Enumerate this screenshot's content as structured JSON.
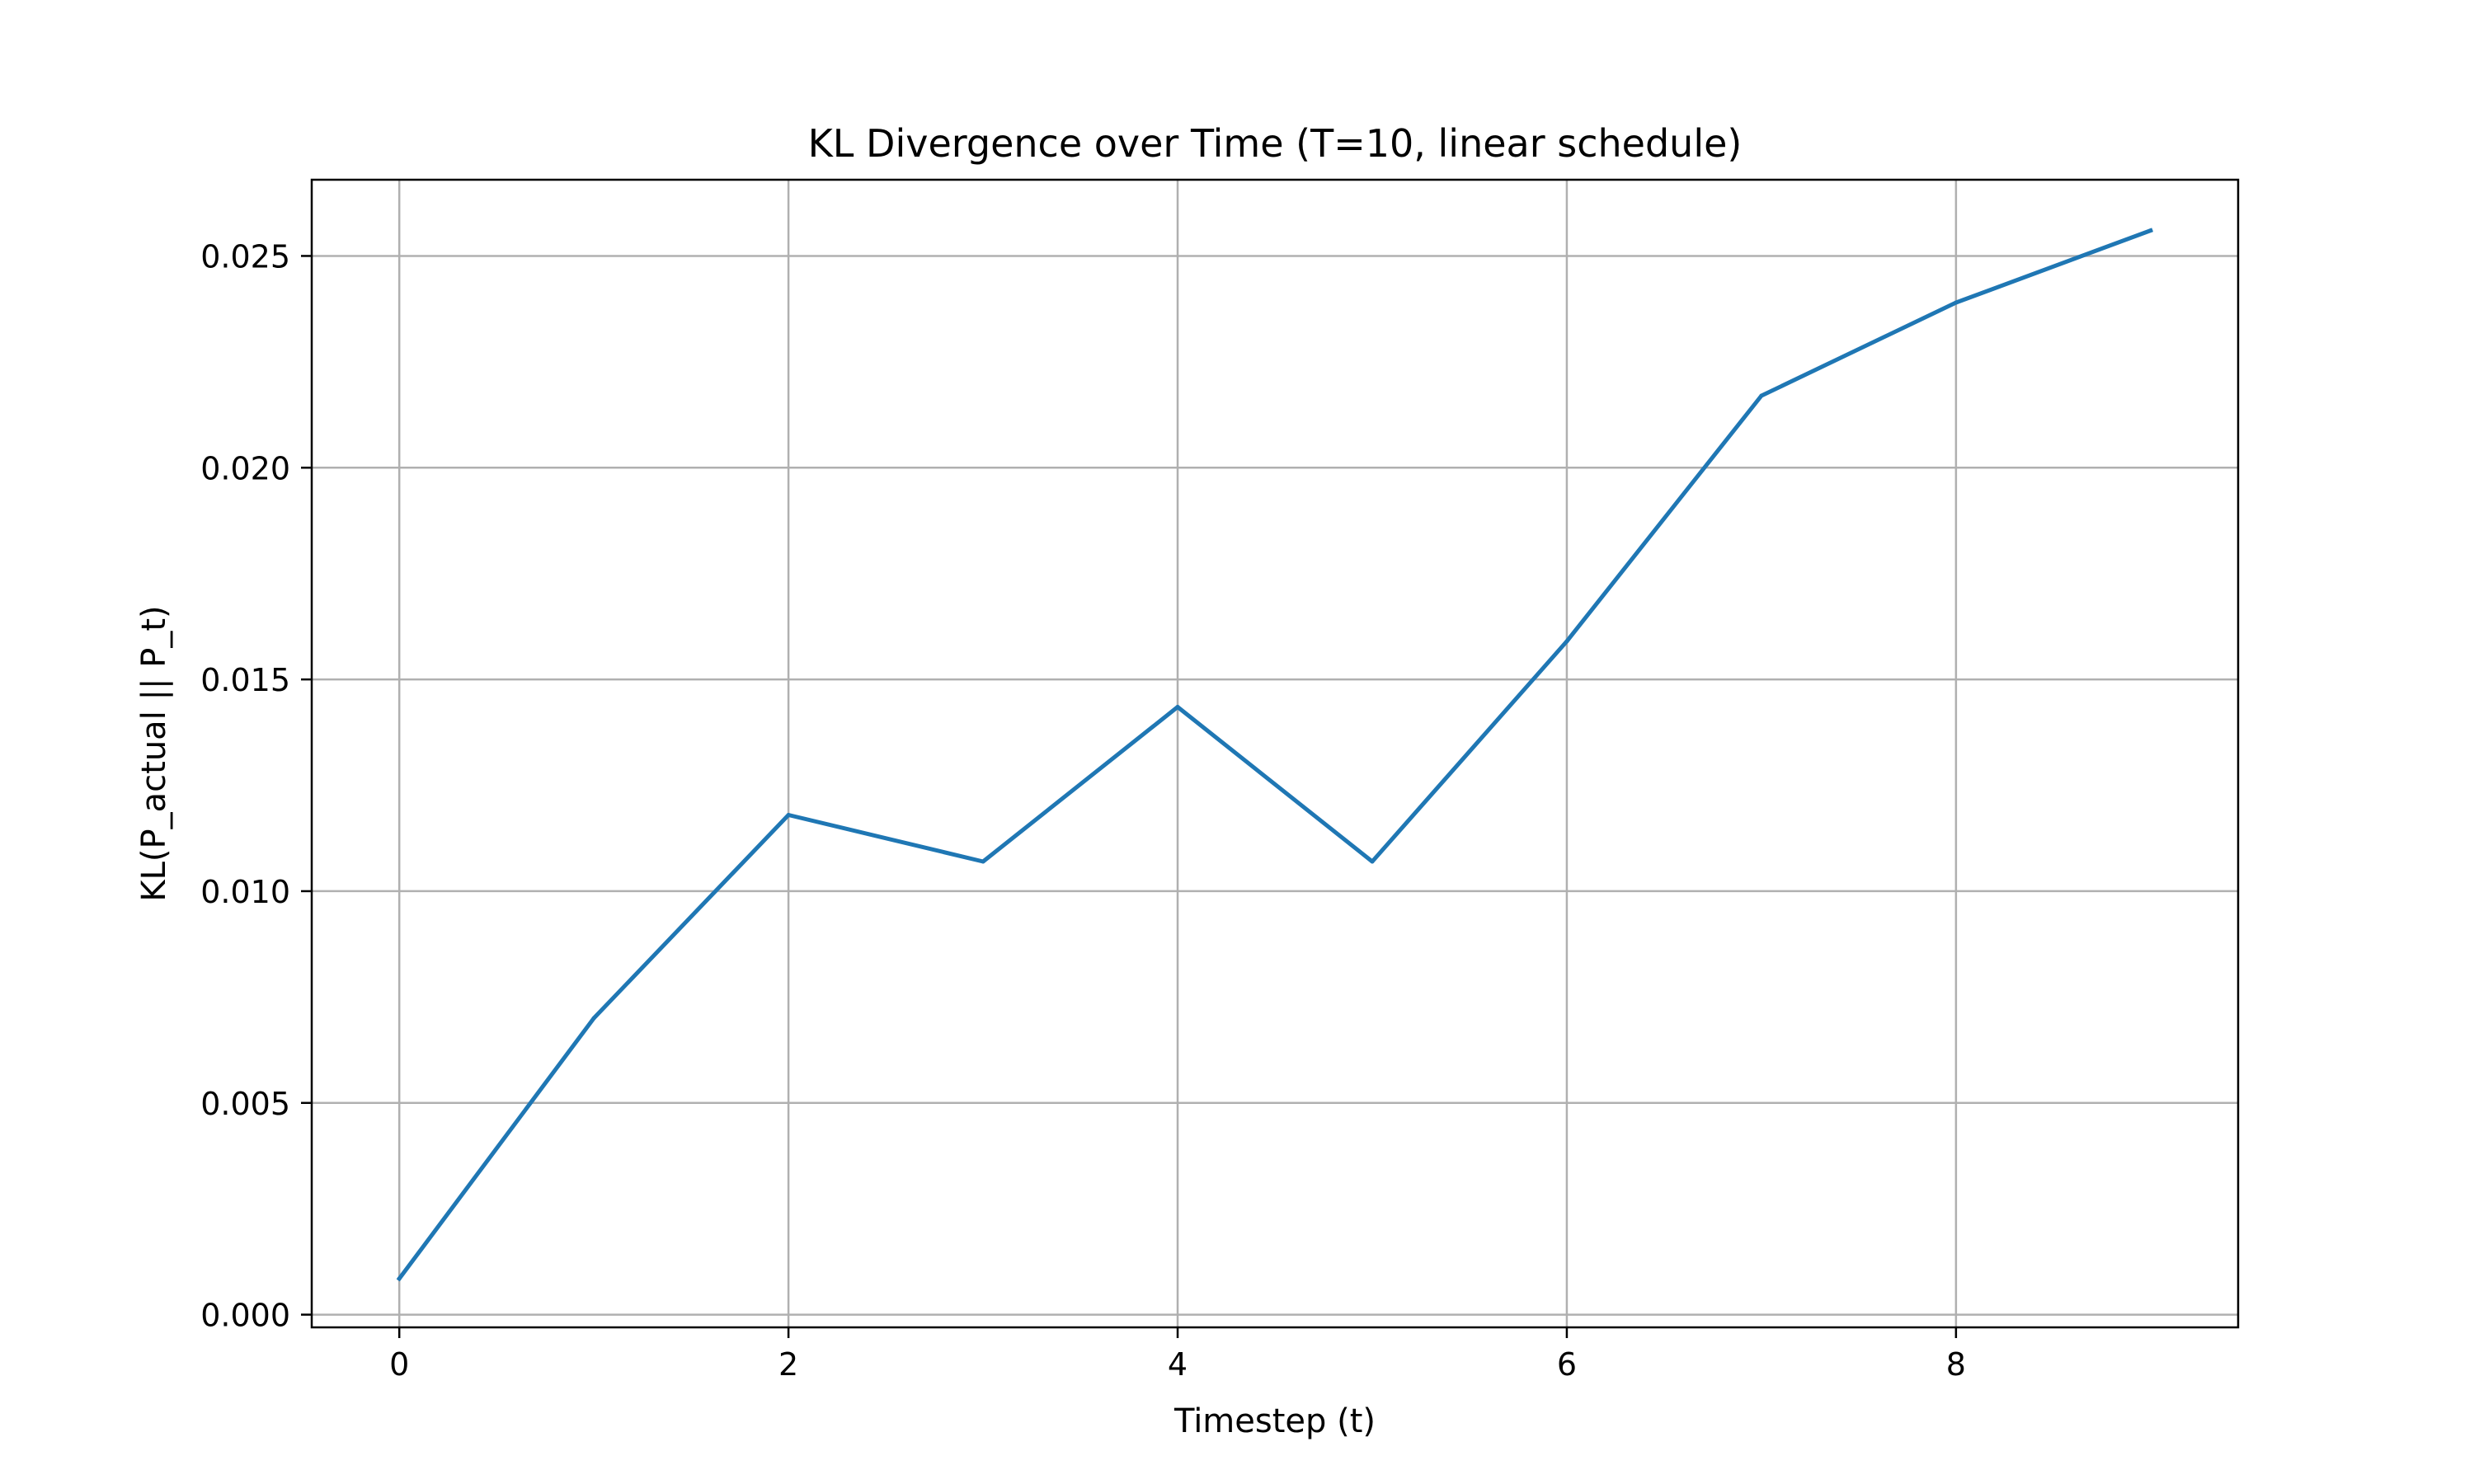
{
  "chart_data": {
    "type": "line",
    "title": "KL Divergence over Time (T=10, linear schedule)",
    "xlabel": "Timestep (t)",
    "ylabel": "KL(P_actual || P_t)",
    "x": [
      0,
      1,
      2,
      3,
      4,
      5,
      6,
      7,
      8,
      9
    ],
    "series": [
      {
        "values": [
          0.00085,
          0.007,
          0.0118,
          0.0107,
          0.01435,
          0.0107,
          0.0159,
          0.0217,
          0.0239,
          0.0256
        ],
        "color": "#1f77b4"
      }
    ],
    "xlim": [
      -0.45,
      9.45
    ],
    "ylim": [
      -0.0003,
      0.0268
    ],
    "xticks": [
      0,
      2,
      4,
      6,
      8
    ],
    "xtick_labels": [
      "0",
      "2",
      "4",
      "6",
      "8"
    ],
    "yticks": [
      0.0,
      0.005,
      0.01,
      0.015,
      0.02,
      0.025
    ],
    "ytick_labels": [
      "0.000",
      "0.005",
      "0.010",
      "0.015",
      "0.020",
      "0.025"
    ],
    "grid": true,
    "legend": false
  }
}
